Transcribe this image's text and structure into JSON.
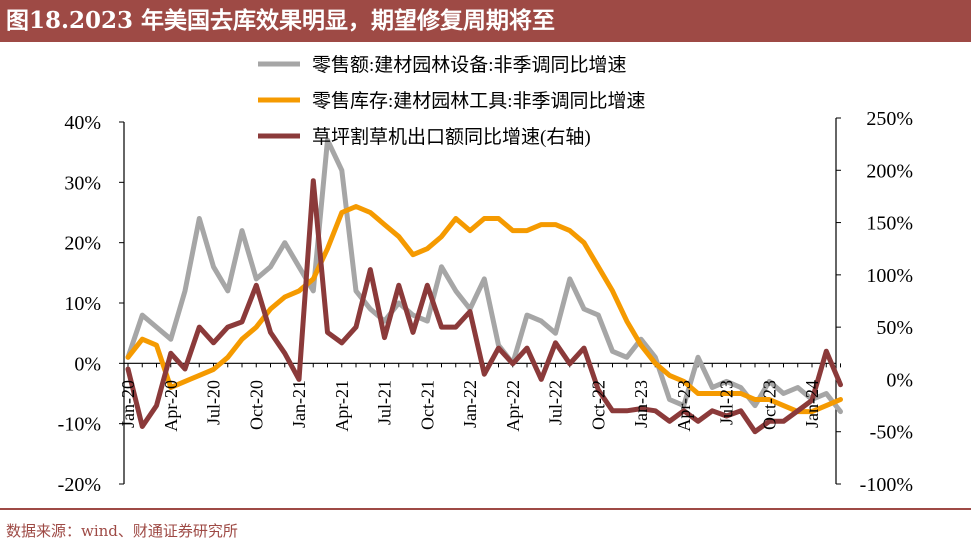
{
  "title": "图18.2023 年美国去库效果明显，期望修复周期将至",
  "source": "数据来源：wind、财通证券研究所",
  "colors": {
    "header_bg": "#9e4a45",
    "series_sales": "#a6a6a6",
    "series_inventory": "#f59a00",
    "series_mower": "#8b3a3a"
  },
  "chart_data": {
    "type": "line",
    "title": "图18.2023 年美国去库效果明显，期望修复周期将至",
    "x": [
      "Jan-20",
      "Feb-20",
      "Mar-20",
      "Apr-20",
      "May-20",
      "Jun-20",
      "Jul-20",
      "Aug-20",
      "Sep-20",
      "Oct-20",
      "Nov-20",
      "Dec-20",
      "Jan-21",
      "Feb-21",
      "Mar-21",
      "Apr-21",
      "May-21",
      "Jun-21",
      "Jul-21",
      "Aug-21",
      "Sep-21",
      "Oct-21",
      "Nov-21",
      "Dec-21",
      "Jan-22",
      "Feb-22",
      "Mar-22",
      "Apr-22",
      "May-22",
      "Jun-22",
      "Jul-22",
      "Aug-22",
      "Sep-22",
      "Oct-22",
      "Nov-22",
      "Dec-22",
      "Jan-23",
      "Feb-23",
      "Mar-23",
      "Apr-23",
      "May-23",
      "Jun-23",
      "Jul-23",
      "Aug-23",
      "Sep-23",
      "Oct-23",
      "Nov-23",
      "Dec-23",
      "Jan-24",
      "Feb-24",
      "Mar-24"
    ],
    "x_tick_labels": [
      "Jan-20",
      "Apr-20",
      "Jul-20",
      "Oct-20",
      "Jan-21",
      "Apr-21",
      "Jul-21",
      "Oct-21",
      "Jan-22",
      "Apr-22",
      "Jul-22",
      "Oct-22",
      "Jan-23",
      "Apr-23",
      "Jul-23",
      "Oct-23",
      "Jan-24"
    ],
    "y_left": {
      "ticks": [
        "40%",
        "30%",
        "20%",
        "10%",
        "0%",
        "-10%",
        "-20%"
      ],
      "range": [
        -20,
        40
      ]
    },
    "y_right": {
      "ticks": [
        "250%",
        "200%",
        "150%",
        "100%",
        "50%",
        "0%",
        "-50%",
        "-100%"
      ],
      "range": [
        -100,
        250
      ]
    },
    "series": [
      {
        "name": "零售额:建材园林设备:非季调同比增速",
        "axis": "left",
        "color": "#a6a6a6",
        "values": [
          1,
          8,
          6,
          4,
          12,
          24,
          16,
          12,
          22,
          14,
          16,
          20,
          16,
          12,
          37,
          32,
          12,
          9,
          7,
          10,
          8,
          7,
          16,
          12,
          9,
          14,
          3,
          0,
          8,
          7,
          5,
          14,
          9,
          8,
          2,
          1,
          4,
          1,
          -6,
          -7,
          1,
          -4,
          -3,
          -4,
          -7,
          -3,
          -5,
          -4,
          -6,
          -5,
          -8
        ]
      },
      {
        "name": "零售库存:建材园林工具:非季调同比增速",
        "axis": "left",
        "color": "#f59a00",
        "values": [
          1,
          4,
          3,
          -4,
          -3,
          -2,
          -1,
          1,
          4,
          6,
          9,
          11,
          12,
          14,
          19,
          25,
          26,
          25,
          23,
          21,
          18,
          19,
          21,
          24,
          22,
          24,
          24,
          22,
          22,
          23,
          23,
          22,
          20,
          16,
          12,
          7,
          3,
          0,
          -2,
          -3,
          -5,
          -5,
          -5,
          -5,
          -6,
          -6,
          -7,
          -8,
          -8,
          -7,
          -6
        ]
      },
      {
        "name": "草坪割草机出口额同比增速(右轴)",
        "axis": "right",
        "color": "#8b3a3a",
        "values": [
          10,
          -45,
          -25,
          25,
          10,
          50,
          35,
          50,
          55,
          90,
          45,
          25,
          0,
          190,
          45,
          35,
          50,
          105,
          40,
          90,
          45,
          90,
          50,
          50,
          65,
          5,
          30,
          15,
          30,
          0,
          35,
          15,
          30,
          -10,
          -30,
          -30,
          -28,
          -30,
          -40,
          -30,
          -40,
          -30,
          -35,
          -30,
          -50,
          -40,
          -40,
          -30,
          -20,
          27,
          -5
        ]
      }
    ],
    "legend": "top-center"
  }
}
